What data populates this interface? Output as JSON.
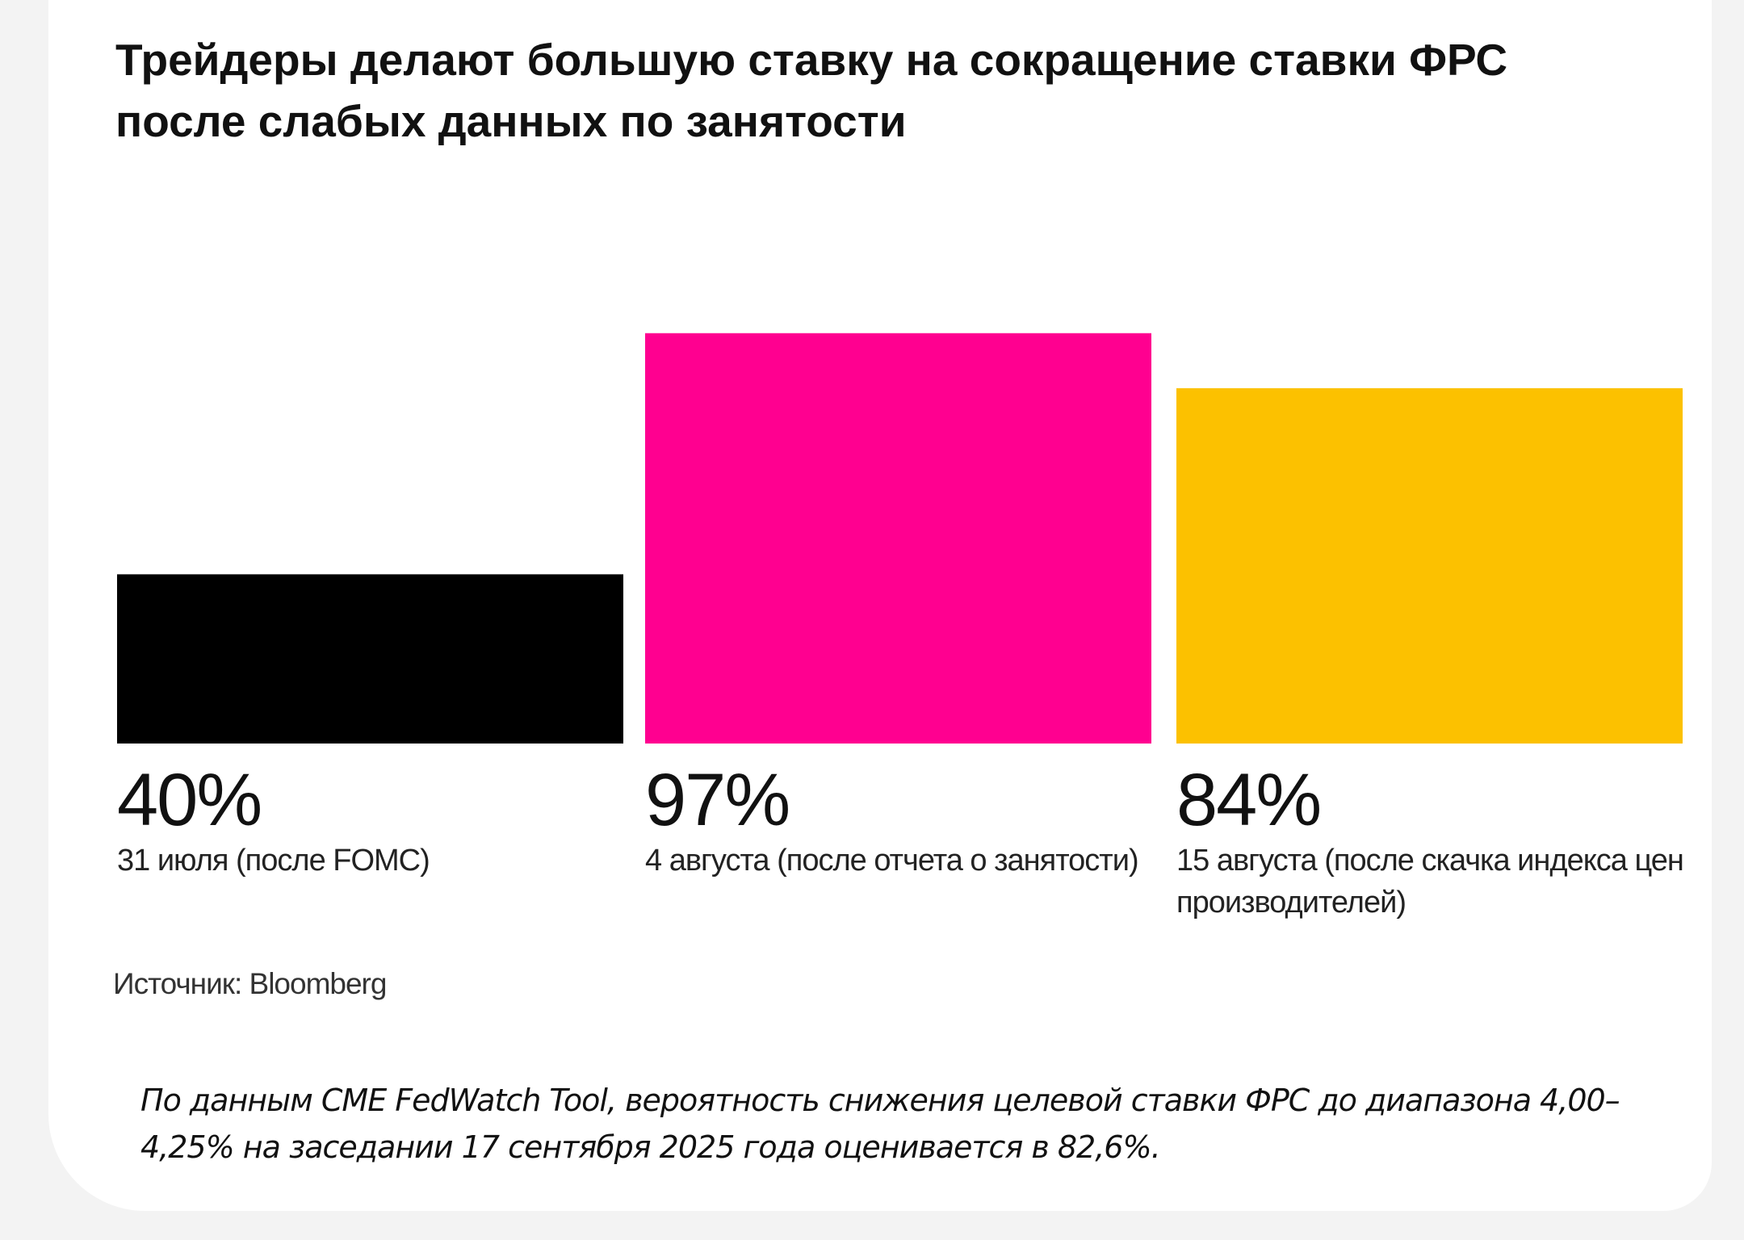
{
  "chart_data": {
    "type": "bar",
    "title": "Трейдеры делают большую ставку на сокращение ставки ФРС после слабых данных по занятости",
    "categories": [
      "31 июля (после FOMC)",
      "4 августа (после отчета о занятости)",
      "15 августа (после скачка индекса цен производителей)"
    ],
    "values": [
      40,
      97,
      84
    ],
    "value_labels": [
      "40%",
      "97%",
      "84%"
    ],
    "colors": [
      "#000000",
      "#ff0090",
      "#fcc100"
    ],
    "ylim": [
      0,
      100
    ],
    "grid": false,
    "source": "Источник: Bloomberg"
  },
  "note": "По данным CME FedWatch Tool, вероятность снижения целевой ставки ФРС до диапазона 4,00–4,25% на заседании 17 сентября 2025 года оценивается в 82,6%."
}
